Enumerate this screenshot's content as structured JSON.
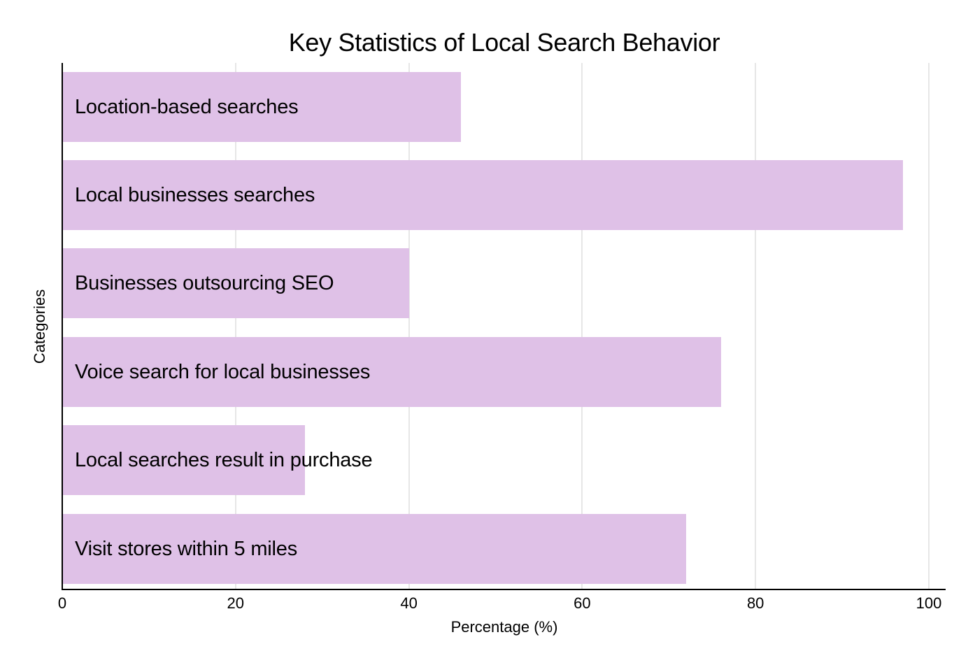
{
  "chart_data": {
    "type": "bar",
    "orientation": "horizontal",
    "title": "Key Statistics of Local Search Behavior",
    "xlabel": "Percentage (%)",
    "ylabel": "Categories",
    "xlim": [
      0,
      100
    ],
    "x_ticks": [
      "0",
      "20",
      "40",
      "60",
      "80",
      "100"
    ],
    "grid": "vertical",
    "legend": "none",
    "bar_color": "#dfc1e7",
    "categories": [
      "Location-based searches",
      "Local businesses searches",
      "Businesses outsourcing SEO",
      "Voice search for local businesses",
      "Local searches result in purchase",
      "Visit stores within 5 miles"
    ],
    "values": [
      46,
      97,
      40,
      76,
      28,
      72
    ]
  }
}
